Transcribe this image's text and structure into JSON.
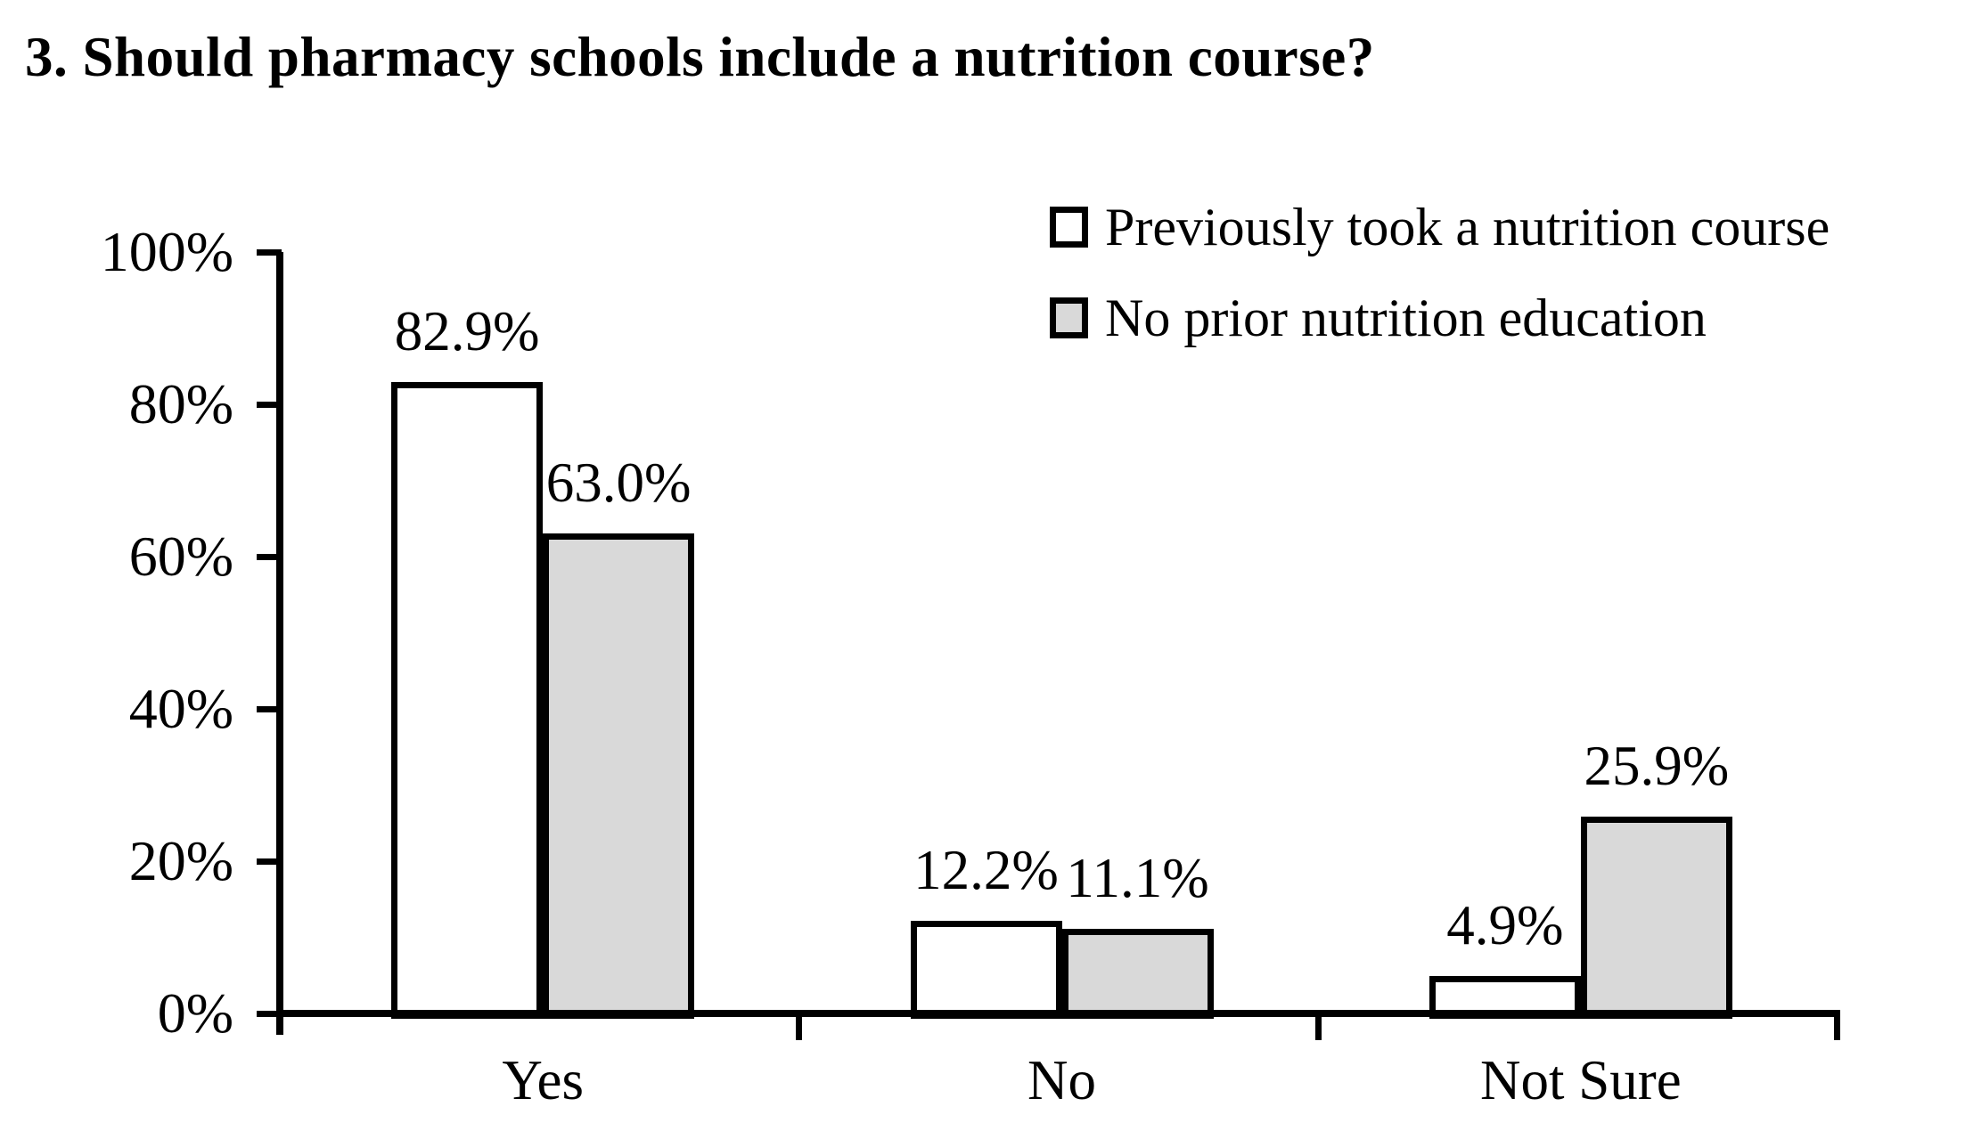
{
  "chart_data": {
    "type": "bar",
    "title": "3. Should pharmacy schools include a nutrition course?",
    "categories": [
      "Yes",
      "No",
      "Not Sure"
    ],
    "series": [
      {
        "name": "Previously took a nutrition course",
        "values": [
          82.9,
          12.2,
          4.9
        ],
        "labels": [
          "82.9%",
          "12.2%",
          "4.9%"
        ],
        "fill": "#ffffff",
        "stroke": "#000000"
      },
      {
        "name": "No prior nutrition education",
        "values": [
          63.0,
          11.1,
          25.9
        ],
        "labels": [
          "63.0%",
          "11.1%",
          "25.9%"
        ],
        "fill": "#d9d9d9",
        "stroke": "#000000"
      }
    ],
    "y_axis": {
      "min": 0,
      "max": 100,
      "tick_step": 20,
      "tick_labels": [
        "0%",
        "20%",
        "40%",
        "60%",
        "80%",
        "100%"
      ]
    },
    "x_axis": {
      "label": ""
    },
    "legend_position": "top-right",
    "grid": false,
    "colors": {
      "ink": "#000000",
      "background": "#ffffff",
      "gray_fill": "#d9d9d9"
    }
  }
}
